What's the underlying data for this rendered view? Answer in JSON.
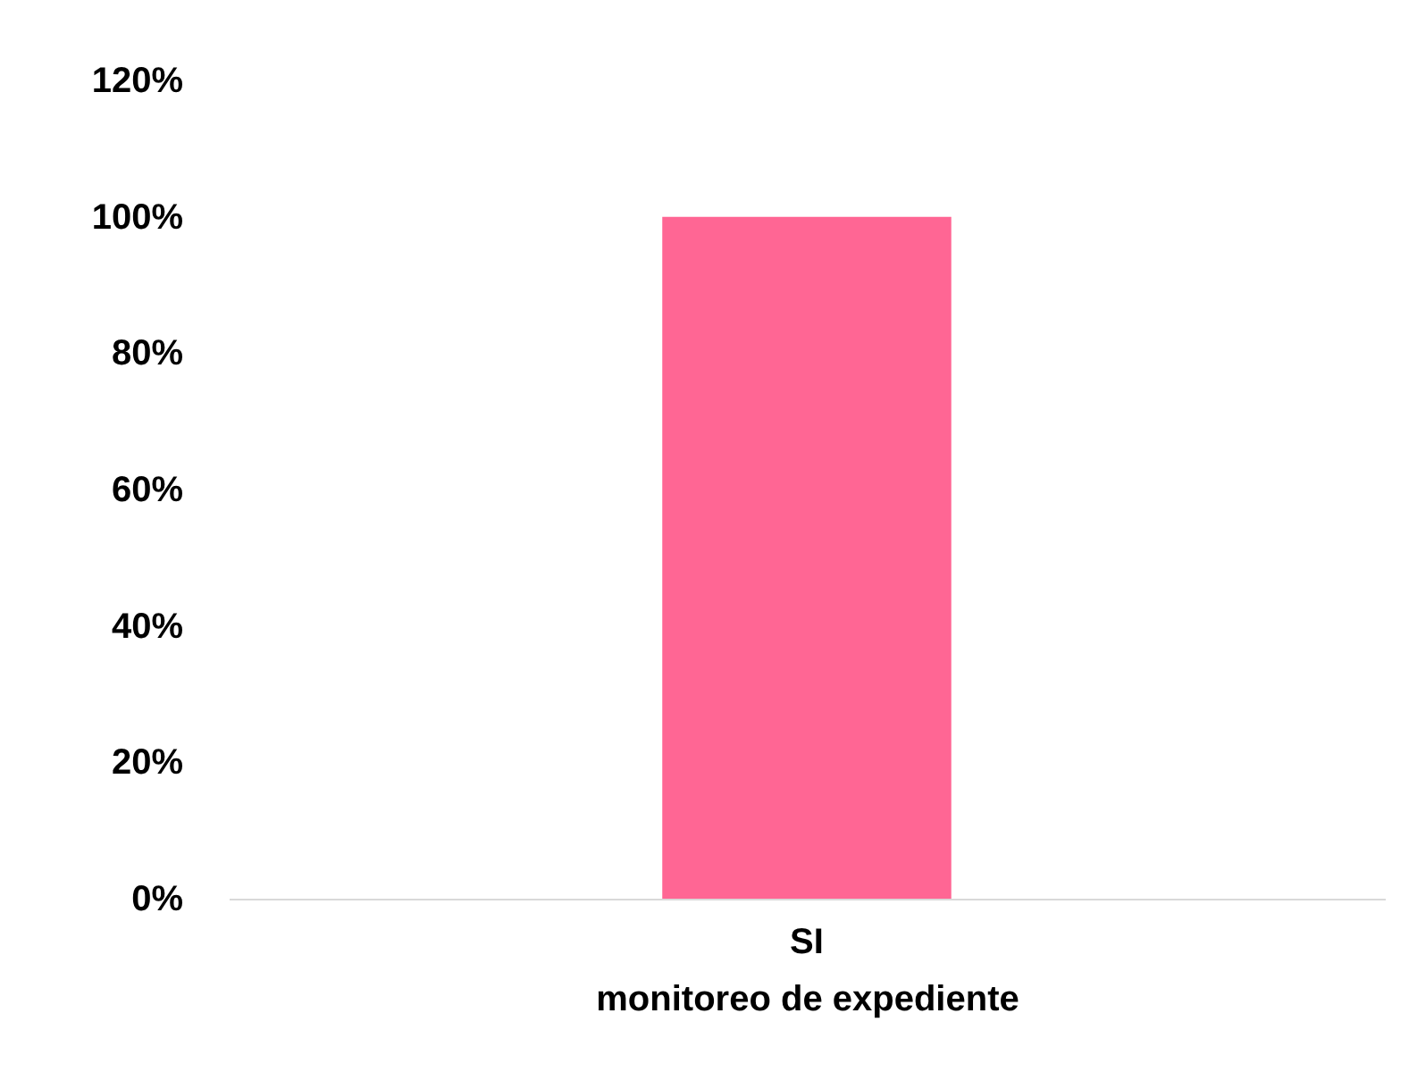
{
  "chart_data": {
    "type": "bar",
    "xlabel": "monitoreo de expediente",
    "categories": [
      "SI"
    ],
    "series": [
      {
        "color": "#ff6694",
        "values": [
          100
        ]
      }
    ],
    "ylim": [
      0,
      120
    ],
    "yticks": [
      {
        "value": 0,
        "label": "0%"
      },
      {
        "value": 20,
        "label": "20%"
      },
      {
        "value": 40,
        "label": "40%"
      },
      {
        "value": 60,
        "label": "60%"
      },
      {
        "value": 80,
        "label": "80%"
      },
      {
        "value": 100,
        "label": "100%"
      },
      {
        "value": 120,
        "label": "120%"
      }
    ],
    "grid": false
  }
}
